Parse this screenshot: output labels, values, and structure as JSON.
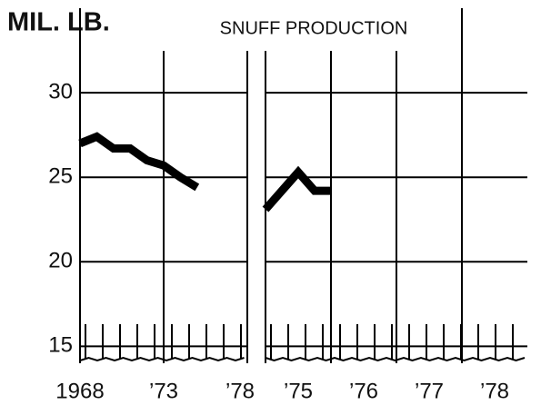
{
  "chart_data": [
    {
      "type": "line",
      "title": "SNUFF PRODUCTION",
      "y_label": "MIL. LB.",
      "x": [
        1968,
        1969,
        1970,
        1971,
        1972,
        1973,
        1974,
        1975
      ],
      "series": [
        {
          "color": "#000000",
          "values": [
            27.0,
            27.4,
            26.7,
            26.7,
            26.0,
            25.7,
            25.0,
            24.4
          ]
        }
      ],
      "xlim": [
        1968,
        1978
      ],
      "xticks": [
        1968,
        {
          "value": 1973,
          "label": "’73"
        },
        {
          "value": 1978,
          "label": "’78"
        }
      ],
      "ylim": [
        14,
        35
      ],
      "yticks": [
        15,
        20,
        25,
        30
      ],
      "grid": true
    },
    {
      "type": "line",
      "x": [
        1975,
        1975.25,
        1975.5,
        1975.75,
        1976
      ],
      "series": [
        {
          "color": "#000000",
          "values": [
            23.1,
            24.2,
            25.3,
            24.2,
            24.2
          ]
        }
      ],
      "xlim": [
        1975,
        1979
      ],
      "xticks": [
        {
          "value": 1975.5,
          "label": "’75"
        },
        {
          "value": 1976.5,
          "label": "’76"
        },
        {
          "value": 1977.5,
          "label": "’77"
        },
        {
          "value": 1978.5,
          "label": "’78"
        }
      ],
      "x_grid_lines": [
        1976,
        1977,
        1978
      ],
      "ylim": [
        14,
        35
      ],
      "grid": true
    }
  ]
}
